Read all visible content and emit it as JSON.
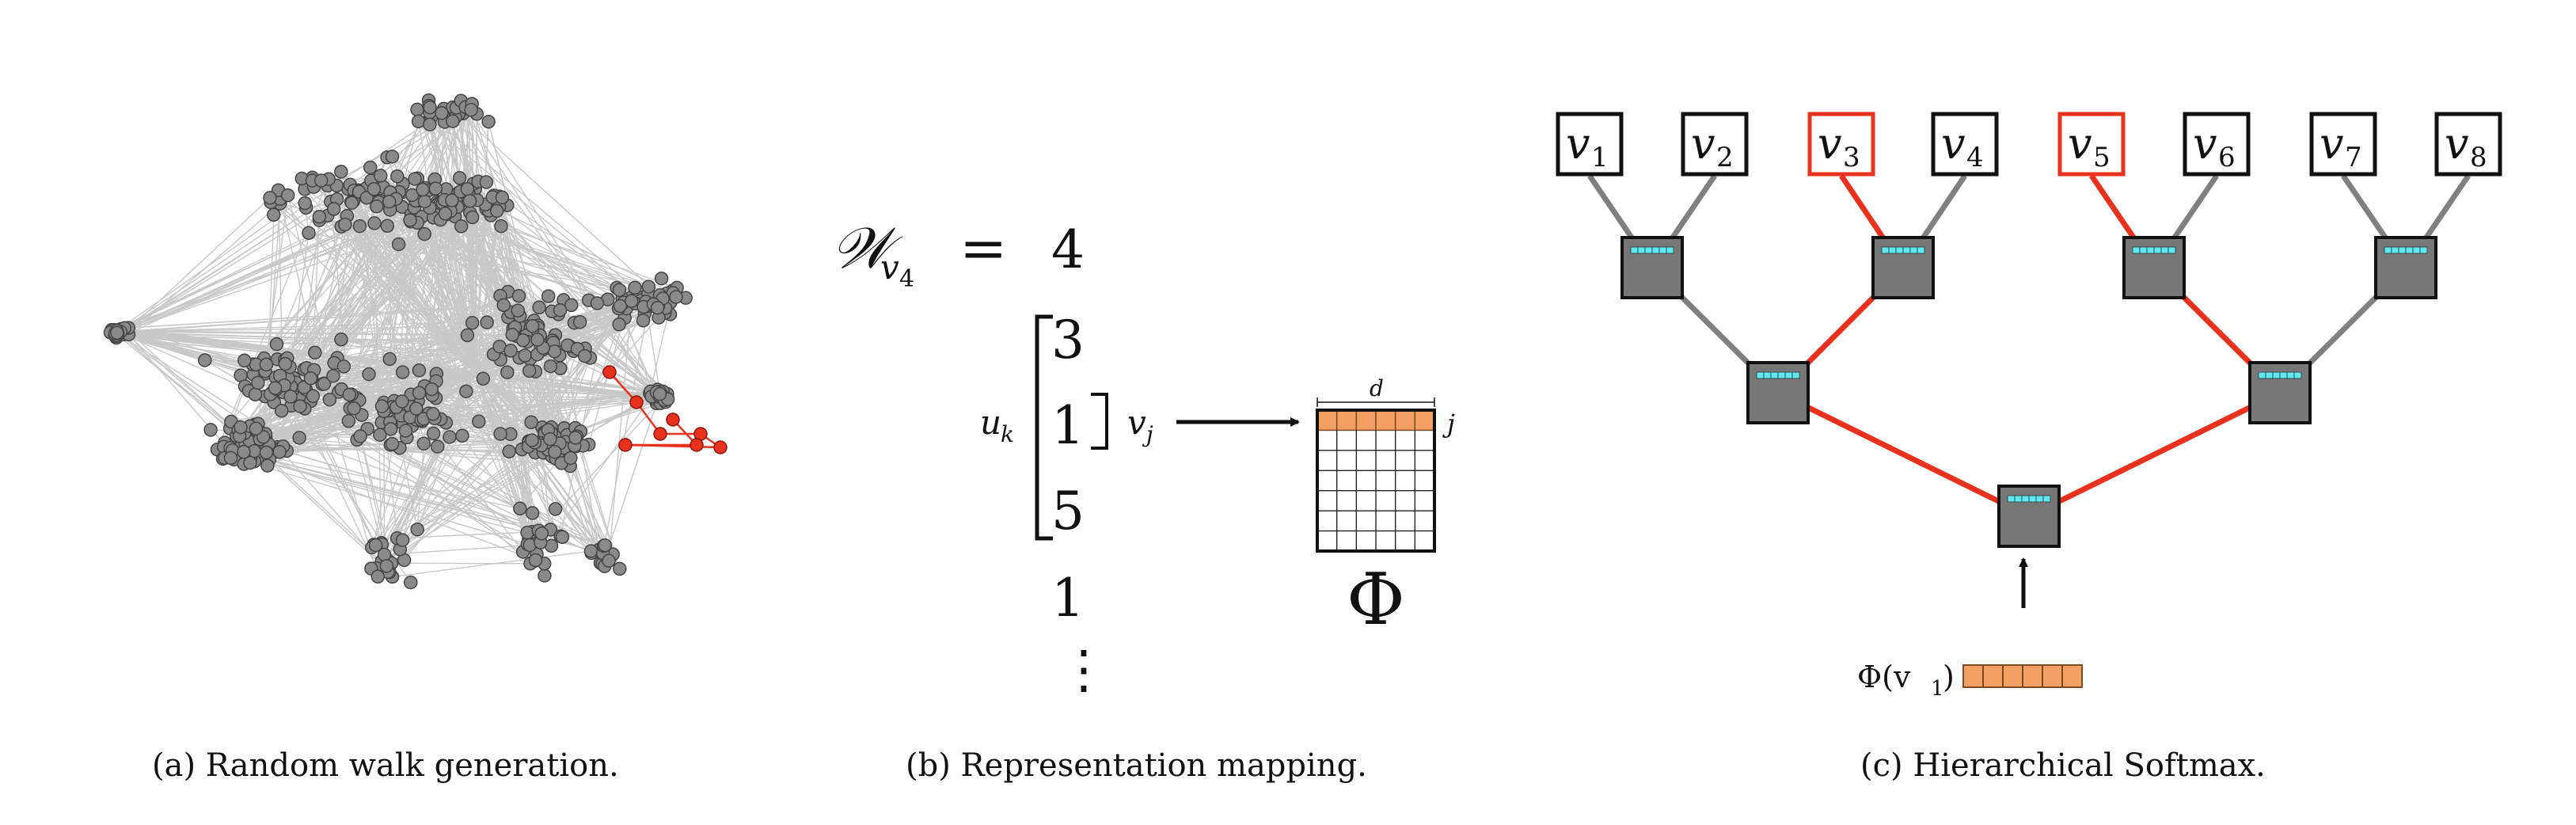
{
  "captions": {
    "a": "(a) Random walk generation.",
    "b": "(b) Representation mapping.",
    "c": "(c) Hierarchical Softmax."
  },
  "panel_b": {
    "walk_symbol": "𝒲",
    "walk_subscript": "v",
    "walk_subscript_index": "4",
    "equals": "=",
    "walk_sequence": [
      "4",
      "3",
      "1",
      "5",
      "1",
      "⋮"
    ],
    "context_label": "u",
    "context_label_sub": "k",
    "vertex_label": "v",
    "vertex_label_sub": "j",
    "matrix_dim_label": "d",
    "matrix_row_label": "j",
    "matrix_name": "Φ"
  },
  "panel_c": {
    "leaves": [
      {
        "label": "v",
        "sub": "1",
        "on_path": false
      },
      {
        "label": "v",
        "sub": "2",
        "on_path": false
      },
      {
        "label": "v",
        "sub": "3",
        "on_path": true
      },
      {
        "label": "v",
        "sub": "4",
        "on_path": false
      },
      {
        "label": "v",
        "sub": "5",
        "on_path": true
      },
      {
        "label": "v",
        "sub": "6",
        "on_path": false
      },
      {
        "label": "v",
        "sub": "7",
        "on_path": false
      },
      {
        "label": "v",
        "sub": "8",
        "on_path": false
      }
    ],
    "input_label": "Φ(v",
    "input_label_sub": "1",
    "input_label_close": ")"
  },
  "colors": {
    "highlight_red": "#e8321e",
    "edge_gray": "#808080",
    "node_gray": "#777777",
    "cell_orange": "#f4a064",
    "cell_cyan": "#5ee8f0",
    "graph_edge": "#c8c8c8"
  }
}
